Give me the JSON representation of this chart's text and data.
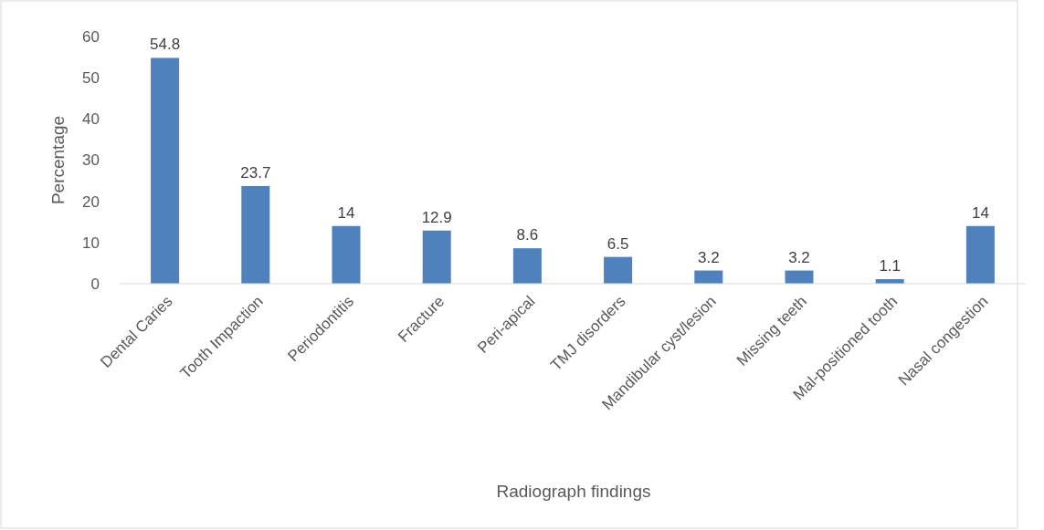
{
  "chart_data": {
    "type": "bar",
    "xlabel": "Radiograph findings",
    "ylabel": "Percentage",
    "categories": [
      "Dental Caries",
      "Tooth Impaction",
      "Periodontitis",
      "Fracture",
      "Peri-apical",
      "TMJ disorders",
      "Mandibular cyst/lesion",
      "Missing teeth",
      "Mal-positioned tooth",
      "Nasal congestion"
    ],
    "values": [
      54.8,
      23.7,
      14,
      12.9,
      8.6,
      6.5,
      3.2,
      3.2,
      1.1,
      14
    ],
    "color": "#4f81bd",
    "ylim": [
      0,
      60
    ],
    "yticks": [
      0,
      10,
      20,
      30,
      40,
      50,
      60
    ],
    "data_labels": true
  }
}
